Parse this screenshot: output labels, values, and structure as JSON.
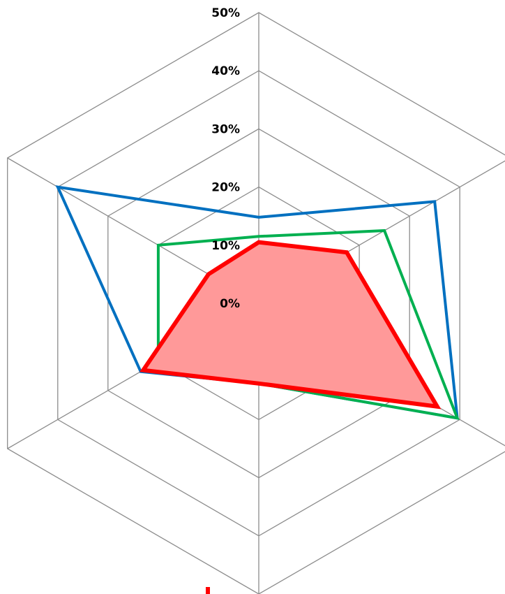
{
  "chart_data": {
    "type": "radar",
    "axes_count": 6,
    "r_range": [
      0,
      50
    ],
    "ticks": [
      "0%",
      "10%",
      "20%",
      "30%",
      "40%",
      "50%"
    ],
    "tick_values": [
      0,
      10,
      20,
      30,
      40,
      50
    ],
    "grid": true,
    "series": [
      {
        "color": "#0070C0",
        "filled": false,
        "values": [
          14.8,
          35,
          39.5,
          13.8,
          23.5,
          40
        ]
      },
      {
        "color": "#00B050",
        "filled": false,
        "values": [
          11.5,
          25,
          39.5,
          13.8,
          20,
          20
        ]
      },
      {
        "color": "#FF0000",
        "filled": true,
        "fill_color": "#FF9999",
        "values": [
          10.5,
          17.5,
          35.5,
          13.8,
          23,
          10
        ]
      }
    ]
  }
}
